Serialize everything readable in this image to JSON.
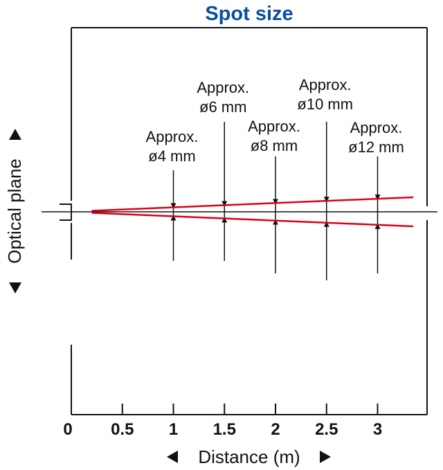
{
  "title": "Spot size",
  "x_axis": {
    "label": "Distance (m)",
    "ticks": [
      "0",
      "0.5",
      "1",
      "1.5",
      "2",
      "2.5",
      "3"
    ]
  },
  "y_axis": {
    "label": "Optical plane"
  },
  "colors": {
    "title": "#0a4ea2",
    "beam": "#d9001b",
    "ink": "#111111"
  },
  "chart_data": {
    "type": "line",
    "x_unit": "m",
    "xlim": [
      0,
      3.5
    ],
    "beam_start_distance": 0.2,
    "beam_end_distance": 3.35,
    "series": [
      {
        "distances": [
          1,
          1.5,
          2,
          2.5,
          3
        ],
        "spot_diameters_mm": [
          4,
          6,
          8,
          10,
          12
        ]
      }
    ],
    "annotations": [
      {
        "distance": 1,
        "line1": "Approx.",
        "line2": "ø4 mm"
      },
      {
        "distance": 1.5,
        "line1": "Approx.",
        "line2": "ø6 mm"
      },
      {
        "distance": 2,
        "line1": "Approx.",
        "line2": "ø8 mm"
      },
      {
        "distance": 2.5,
        "line1": "Approx.",
        "line2": "ø10 mm"
      },
      {
        "distance": 3,
        "line1": "Approx.",
        "line2": "ø12 mm"
      }
    ]
  }
}
